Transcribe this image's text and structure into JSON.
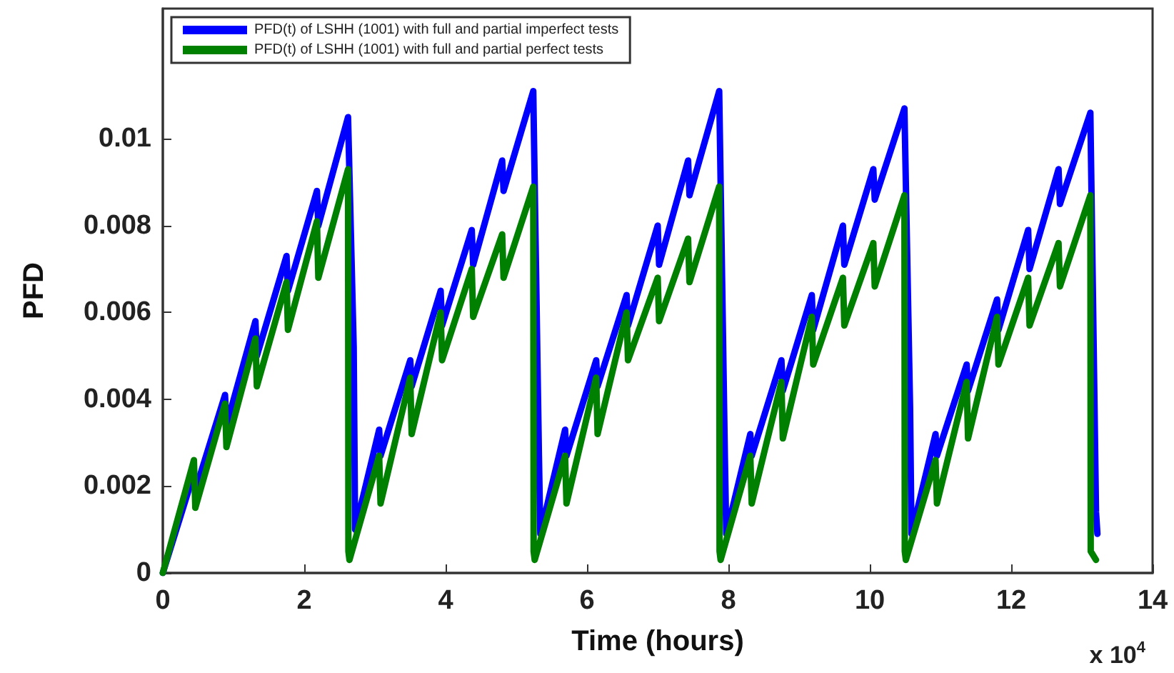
{
  "chart_data": {
    "type": "line",
    "xlabel": "Time (hours)",
    "ylabel": "PFD",
    "annotations": [
      "x 10$^{4}$"
    ],
    "x": [
      0,
      0.44,
      0.46,
      0.88,
      0.9,
      1.31,
      1.33,
      1.75,
      1.77,
      2.18,
      2.2,
      2.62,
      2.625,
      2.64,
      3.06,
      3.08,
      3.5,
      3.52,
      3.93,
      3.95,
      4.37,
      4.39,
      4.8,
      4.82,
      5.24,
      5.245,
      5.26,
      5.69,
      5.71,
      6.13,
      6.15,
      6.56,
      6.58,
      7.0,
      7.02,
      7.43,
      7.45,
      7.87,
      7.875,
      7.89,
      8.31,
      8.33,
      8.75,
      8.77,
      9.18,
      9.2,
      9.62,
      9.64,
      10.05,
      10.07,
      10.49,
      10.495,
      10.51,
      10.93,
      10.95,
      11.37,
      11.39,
      11.8,
      11.82,
      12.24,
      12.26,
      12.67,
      12.69,
      13.12,
      13.125,
      13.2
    ],
    "series": [
      {
        "name": "PFD(t) of LSHH (1001) with full and partial imperfect tests",
        "color": "#0000ff",
        "x": [
          0,
          0.44,
          0.46,
          0.88,
          0.9,
          1.31,
          1.33,
          1.75,
          1.77,
          2.18,
          2.2,
          2.62,
          2.7,
          2.72,
          3.06,
          3.08,
          3.5,
          3.52,
          3.93,
          3.95,
          4.37,
          4.39,
          4.8,
          4.82,
          5.24,
          5.32,
          5.34,
          5.69,
          5.71,
          6.13,
          6.15,
          6.56,
          6.58,
          7.0,
          7.02,
          7.43,
          7.45,
          7.87,
          7.95,
          7.97,
          8.31,
          8.33,
          8.75,
          8.77,
          9.18,
          9.2,
          9.62,
          9.64,
          10.05,
          10.07,
          10.49,
          10.57,
          10.59,
          10.93,
          10.95,
          11.37,
          11.39,
          11.8,
          11.82,
          12.24,
          12.26,
          12.67,
          12.69,
          13.12,
          13.2,
          13.22
        ],
        "values": [
          0,
          0.0023,
          0.0019,
          0.0041,
          0.0034,
          0.0058,
          0.005,
          0.0073,
          0.0065,
          0.0088,
          0.008,
          0.0105,
          0.0052,
          0.001,
          0.0033,
          0.0027,
          0.0049,
          0.0043,
          0.0065,
          0.0057,
          0.0079,
          0.0071,
          0.0095,
          0.0088,
          0.0111,
          0.0027,
          0.0009,
          0.0033,
          0.0027,
          0.0049,
          0.0043,
          0.0064,
          0.0057,
          0.008,
          0.0071,
          0.0095,
          0.0087,
          0.0111,
          0.0027,
          0.0009,
          0.0032,
          0.0027,
          0.0049,
          0.0042,
          0.0064,
          0.0056,
          0.008,
          0.0071,
          0.0093,
          0.0086,
          0.0107,
          0.0038,
          0.0009,
          0.0032,
          0.0027,
          0.0048,
          0.0042,
          0.0063,
          0.0056,
          0.0079,
          0.007,
          0.0093,
          0.0085,
          0.0106,
          0.0014,
          0.0009
        ]
      },
      {
        "name": "PFD(t) of LSHH (1001) with full and partial perfect tests",
        "color": "#008000",
        "values": [
          0,
          0.0026,
          0.0015,
          0.0039,
          0.0029,
          0.0054,
          0.0043,
          0.0067,
          0.0056,
          0.0081,
          0.0068,
          0.0093,
          0.0005,
          0.0003,
          0.0027,
          0.0016,
          0.0045,
          0.0032,
          0.006,
          0.0049,
          0.007,
          0.0059,
          0.0078,
          0.0068,
          0.0089,
          0.0005,
          0.0003,
          0.0027,
          0.0016,
          0.0045,
          0.0032,
          0.006,
          0.0049,
          0.0068,
          0.0058,
          0.0077,
          0.0067,
          0.0089,
          0.0005,
          0.0003,
          0.0027,
          0.0016,
          0.0044,
          0.0031,
          0.0059,
          0.0048,
          0.0068,
          0.0057,
          0.0076,
          0.0066,
          0.0087,
          0.0005,
          0.0003,
          0.0026,
          0.0016,
          0.0044,
          0.0031,
          0.0059,
          0.0048,
          0.0068,
          0.0057,
          0.0076,
          0.0066,
          0.0087,
          0.0005,
          0.0003
        ]
      }
    ],
    "xlim": [
      0,
      14
    ],
    "xticks": [
      0,
      2,
      4,
      6,
      8,
      10,
      12,
      14
    ],
    "ylim": [
      0,
      0.013
    ],
    "yticks": [
      0,
      0.002,
      0.004,
      0.006,
      0.008,
      0.01
    ],
    "grid": false,
    "legend": "top left",
    "marker": "none",
    "line_style": "solid"
  }
}
